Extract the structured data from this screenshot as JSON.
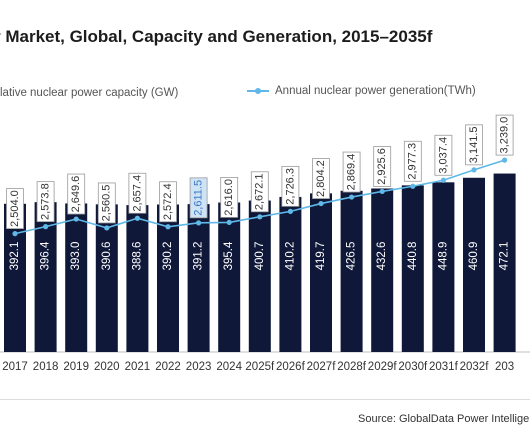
{
  "title": "r Market, Global, Capacity and Generation, 2015–2035f",
  "legend": {
    "capacity": "lative nuclear power capacity (GW)",
    "generation": "Annual nuclear power generation(TWh)"
  },
  "source": "Source: GlobalData Power Intelligence",
  "colors": {
    "bar": "#0f1838",
    "line": "#5fb8e8",
    "highlight_fill": "#cfe3f7",
    "highlight_text": "#3a78c2"
  },
  "chart_data": {
    "type": "bar",
    "categories": [
      "2017",
      "2018",
      "2019",
      "2020",
      "2021",
      "2022",
      "2023",
      "2024",
      "2025f",
      "2026f",
      "2027f",
      "2028f",
      "2029f",
      "2030f",
      "2031f",
      "2032f",
      "203"
    ],
    "series": [
      {
        "name": "lative nuclear power capacity (GW)",
        "type": "bar",
        "values": [
          392.1,
          396.4,
          393.0,
          390.6,
          388.6,
          390.2,
          391.2,
          395.4,
          400.7,
          410.2,
          419.7,
          426.5,
          432.6,
          440.8,
          448.9,
          460.9,
          472.1
        ],
        "labels": [
          "392.1",
          "396.4",
          "393.0",
          "390.6",
          "388.6",
          "390.2",
          "391.2",
          "395.4",
          "400.7",
          "410.2",
          "419.7",
          "426.5",
          "432.6",
          "440.8",
          "448.9",
          "460.9",
          "472.1"
        ]
      },
      {
        "name": "Annual nuclear power generation(TWh)",
        "type": "line",
        "values": [
          2504.0,
          2573.8,
          2649.6,
          2560.5,
          2657.4,
          2572.4,
          2611.5,
          2616.0,
          2672.1,
          2726.3,
          2804.2,
          2869.4,
          2925.6,
          2977.3,
          3037.4,
          3141.5,
          3239.0
        ],
        "labels": [
          "2,504.0",
          "2,573.8",
          "2,649.6",
          "2,560.5",
          "2,657.4",
          "2,572.4",
          "2,611.5",
          "2,616.0",
          "2,672.1",
          "2,726.3",
          "2,804.2",
          "2,869.4",
          "2,925.6",
          "2,977.3",
          "3,037.4",
          "3,141.5",
          "3,239.0"
        ],
        "highlighted": "2,611.5"
      }
    ]
  }
}
